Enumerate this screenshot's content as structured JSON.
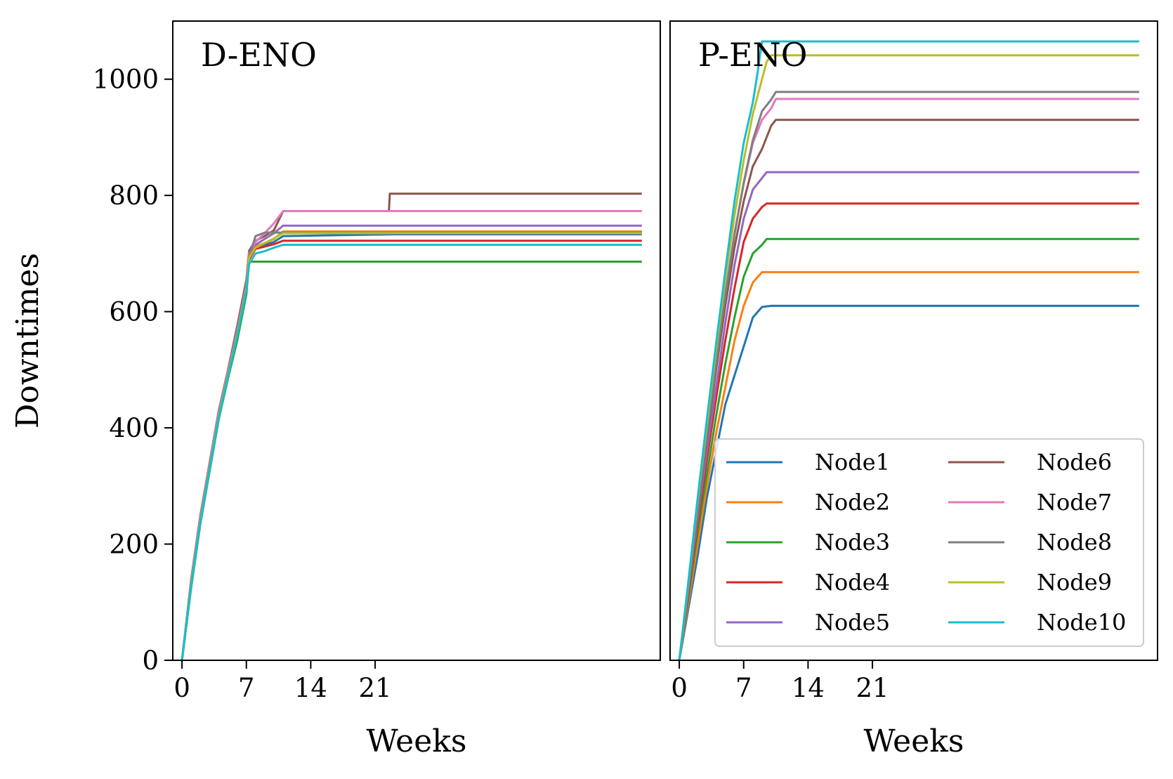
{
  "chart_data": [
    {
      "type": "line",
      "title": "D-ENO",
      "xlabel": "Weeks",
      "ylabel": "Downtimes",
      "xticks": [
        "0",
        "7",
        "14",
        "21"
      ],
      "yticks": [
        "0",
        "200",
        "400",
        "600",
        "800",
        "1000"
      ],
      "xlim": [
        -1,
        52
      ],
      "ylim": [
        0,
        1100
      ],
      "grid": false,
      "series": [
        {
          "name": "Node1",
          "color": "#1f77b4",
          "x": [
            0,
            1,
            2,
            3,
            4,
            5,
            6,
            7,
            7.3,
            8,
            9,
            10,
            11,
            23,
            50
          ],
          "y": [
            0,
            130,
            240,
            330,
            420,
            490,
            560,
            640,
            690,
            712,
            715,
            720,
            730,
            733,
            733
          ]
        },
        {
          "name": "Node2",
          "color": "#ff7f0e",
          "x": [
            0,
            1,
            2,
            3,
            4,
            5,
            6,
            7,
            7.3,
            8,
            9,
            10,
            11,
            23,
            50
          ],
          "y": [
            0,
            135,
            245,
            335,
            425,
            495,
            565,
            645,
            695,
            712,
            718,
            725,
            738,
            738,
            738
          ]
        },
        {
          "name": "Node3",
          "color": "#2ca02c",
          "x": [
            0,
            1,
            2,
            3,
            4,
            5,
            6,
            7,
            7.3,
            8,
            9,
            10,
            11,
            23,
            50
          ],
          "y": [
            0,
            125,
            235,
            325,
            415,
            485,
            550,
            630,
            686,
            686,
            686,
            686,
            686,
            686,
            686
          ]
        },
        {
          "name": "Node4",
          "color": "#d62728",
          "x": [
            0,
            1,
            2,
            3,
            4,
            5,
            6,
            7,
            7.3,
            8,
            9,
            10,
            11,
            23,
            50
          ],
          "y": [
            0,
            132,
            242,
            332,
            422,
            492,
            562,
            642,
            690,
            708,
            712,
            716,
            722,
            722,
            722
          ]
        },
        {
          "name": "Node5",
          "color": "#9467bd",
          "x": [
            0,
            1,
            2,
            3,
            4,
            5,
            6,
            7,
            7.3,
            8,
            9,
            10,
            11,
            23,
            50
          ],
          "y": [
            0,
            138,
            248,
            338,
            428,
            498,
            568,
            648,
            698,
            715,
            725,
            735,
            748,
            748,
            748
          ]
        },
        {
          "name": "Node6",
          "color": "#8c564b",
          "x": [
            0,
            1,
            2,
            3,
            4,
            5,
            6,
            7,
            7.3,
            8,
            9,
            10,
            11,
            22.5,
            22.6,
            50
          ],
          "y": [
            0,
            140,
            250,
            340,
            430,
            500,
            575,
            655,
            705,
            722,
            730,
            740,
            773,
            773,
            803,
            803
          ]
        },
        {
          "name": "Node7",
          "color": "#e377c2",
          "x": [
            0,
            1,
            2,
            3,
            4,
            5,
            6,
            7,
            7.3,
            8,
            9,
            10,
            11,
            23,
            50
          ],
          "y": [
            0,
            137,
            247,
            337,
            427,
            497,
            567,
            647,
            700,
            720,
            735,
            752,
            773,
            773,
            773
          ]
        },
        {
          "name": "Node8",
          "color": "#7f7f7f",
          "x": [
            0,
            1,
            2,
            3,
            4,
            5,
            6,
            7,
            7.3,
            8,
            9,
            10,
            11,
            23,
            50
          ],
          "y": [
            0,
            133,
            243,
            333,
            423,
            493,
            563,
            643,
            695,
            730,
            736,
            736,
            736,
            736,
            736
          ]
        },
        {
          "name": "Node9",
          "color": "#bcbd22",
          "x": [
            0,
            1,
            2,
            3,
            4,
            5,
            6,
            7,
            7.3,
            8,
            9,
            10,
            11,
            23,
            50
          ],
          "y": [
            0,
            131,
            241,
            331,
            421,
            491,
            561,
            641,
            693,
            710,
            718,
            726,
            735,
            735,
            735
          ]
        },
        {
          "name": "Node10",
          "color": "#17becf",
          "x": [
            0,
            1,
            2,
            3,
            4,
            5,
            6,
            7,
            7.3,
            8,
            9,
            10,
            11,
            23,
            50
          ],
          "y": [
            0,
            128,
            238,
            328,
            418,
            488,
            558,
            638,
            682,
            700,
            704,
            710,
            715,
            715,
            715
          ]
        }
      ]
    },
    {
      "type": "line",
      "title": "P-ENO",
      "xlabel": "Weeks",
      "ylabel": "",
      "xticks": [
        "0",
        "7",
        "14",
        "21"
      ],
      "yticks": [],
      "xlim": [
        -1,
        52
      ],
      "ylim": [
        0,
        1100
      ],
      "grid": false,
      "legend": {
        "placement": "lower-right",
        "columns": 2
      },
      "series": [
        {
          "name": "Node1",
          "color": "#1f77b4",
          "x": [
            0,
            1,
            2,
            3,
            4,
            5,
            6,
            7,
            8,
            9,
            10,
            50
          ],
          "y": [
            0,
            90,
            180,
            280,
            360,
            440,
            490,
            540,
            590,
            608,
            610,
            610
          ]
        },
        {
          "name": "Node2",
          "color": "#ff7f0e",
          "x": [
            0,
            1,
            2,
            3,
            4,
            5,
            6,
            7,
            8,
            9,
            50
          ],
          "y": [
            0,
            100,
            200,
            300,
            390,
            470,
            550,
            610,
            650,
            668,
            668
          ]
        },
        {
          "name": "Node3",
          "color": "#2ca02c",
          "x": [
            0,
            1,
            2,
            3,
            4,
            5,
            6,
            7,
            8,
            9,
            9.5,
            50
          ],
          "y": [
            0,
            110,
            220,
            320,
            420,
            510,
            590,
            660,
            700,
            715,
            725,
            725
          ]
        },
        {
          "name": "Node4",
          "color": "#d62728",
          "x": [
            0,
            1,
            2,
            3,
            4,
            5,
            6,
            7,
            8,
            9,
            9.5,
            50
          ],
          "y": [
            0,
            115,
            235,
            345,
            450,
            550,
            640,
            720,
            760,
            780,
            786,
            786
          ]
        },
        {
          "name": "Node5",
          "color": "#9467bd",
          "x": [
            0,
            1,
            2,
            3,
            4,
            5,
            6,
            7,
            8,
            9,
            9.5,
            50
          ],
          "y": [
            0,
            120,
            245,
            360,
            470,
            580,
            680,
            760,
            810,
            830,
            840,
            840
          ]
        },
        {
          "name": "Node6",
          "color": "#8c564b",
          "x": [
            0,
            1,
            2,
            3,
            4,
            5,
            6,
            7,
            8,
            9,
            10,
            10.5,
            50
          ],
          "y": [
            0,
            125,
            255,
            380,
            500,
            610,
            710,
            790,
            850,
            880,
            920,
            930,
            930
          ]
        },
        {
          "name": "Node7",
          "color": "#e377c2",
          "x": [
            0,
            1,
            2,
            3,
            4,
            5,
            6,
            7,
            8,
            9,
            10,
            10.5,
            50
          ],
          "y": [
            0,
            130,
            265,
            390,
            515,
            630,
            735,
            820,
            890,
            930,
            950,
            966,
            966
          ]
        },
        {
          "name": "Node8",
          "color": "#7f7f7f",
          "x": [
            0,
            1,
            2,
            3,
            4,
            5,
            6,
            7,
            8,
            9,
            10,
            10.5,
            50
          ],
          "y": [
            0,
            128,
            260,
            388,
            512,
            628,
            732,
            822,
            895,
            945,
            965,
            978,
            978
          ]
        },
        {
          "name": "Node9",
          "color": "#bcbd22",
          "x": [
            0,
            1,
            2,
            3,
            4,
            5,
            6,
            7,
            8,
            9,
            9.5,
            10,
            50
          ],
          "y": [
            0,
            135,
            275,
            405,
            535,
            655,
            765,
            860,
            940,
            1000,
            1030,
            1041,
            1041
          ]
        },
        {
          "name": "Node10",
          "color": "#17becf",
          "x": [
            0,
            1,
            2,
            3,
            4,
            5,
            6,
            7,
            8,
            8.5,
            9,
            50
          ],
          "y": [
            0,
            138,
            280,
            415,
            545,
            670,
            790,
            890,
            960,
            1010,
            1065,
            1065
          ]
        }
      ]
    }
  ]
}
